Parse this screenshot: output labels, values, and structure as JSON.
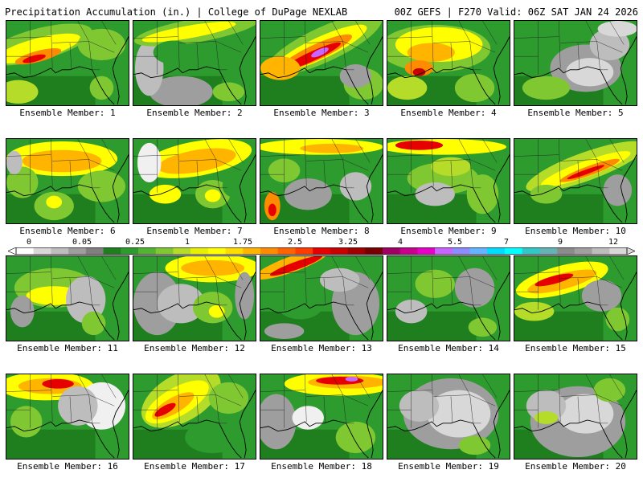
{
  "header": {
    "title": "Precipitation Accumulation (in.) | College of DuPage NEXLAB",
    "valid": "00Z GEFS | F270 Valid: 06Z SAT JAN 24 2026"
  },
  "legend": {
    "ticks": [
      "0",
      "0.05",
      "0.25",
      "1",
      "1.75",
      "2.5",
      "3.25",
      "4",
      "5.5",
      "7",
      "9",
      "12"
    ],
    "colors": [
      "#ffffff",
      "#d8d8d8",
      "#bdbdbd",
      "#9e9e9e",
      "#808080",
      "#1f7f1f",
      "#2e9b2e",
      "#52b432",
      "#80c832",
      "#b4dc28",
      "#e6f000",
      "#ffff00",
      "#ffdc00",
      "#ffb400",
      "#ff8c00",
      "#ff6400",
      "#ff3c00",
      "#e60000",
      "#c80000",
      "#a00000",
      "#780000",
      "#a00064",
      "#c8008c",
      "#e600c8",
      "#c864ff",
      "#8c8cff",
      "#64b4ff",
      "#00dcff",
      "#00ffff",
      "#32c8c8",
      "#64b4b4",
      "#8c8c8c",
      "#a0a0a0",
      "#bdbdbd",
      "#d8d8d8"
    ]
  },
  "members": [
    {
      "label": "Ensemble Member: 1"
    },
    {
      "label": "Ensemble Member: 2"
    },
    {
      "label": "Ensemble Member: 3"
    },
    {
      "label": "Ensemble Member: 4"
    },
    {
      "label": "Ensemble Member: 5"
    },
    {
      "label": "Ensemble Member: 6"
    },
    {
      "label": "Ensemble Member: 7"
    },
    {
      "label": "Ensemble Member: 8"
    },
    {
      "label": "Ensemble Member: 9"
    },
    {
      "label": "Ensemble Member: 10"
    },
    {
      "label": "Ensemble Member: 11"
    },
    {
      "label": "Ensemble Member: 12"
    },
    {
      "label": "Ensemble Member: 13"
    },
    {
      "label": "Ensemble Member: 14"
    },
    {
      "label": "Ensemble Member: 15"
    },
    {
      "label": "Ensemble Member: 16"
    },
    {
      "label": "Ensemble Member: 17"
    },
    {
      "label": "Ensemble Member: 18"
    },
    {
      "label": "Ensemble Member: 19"
    },
    {
      "label": "Ensemble Member: 20"
    }
  ]
}
